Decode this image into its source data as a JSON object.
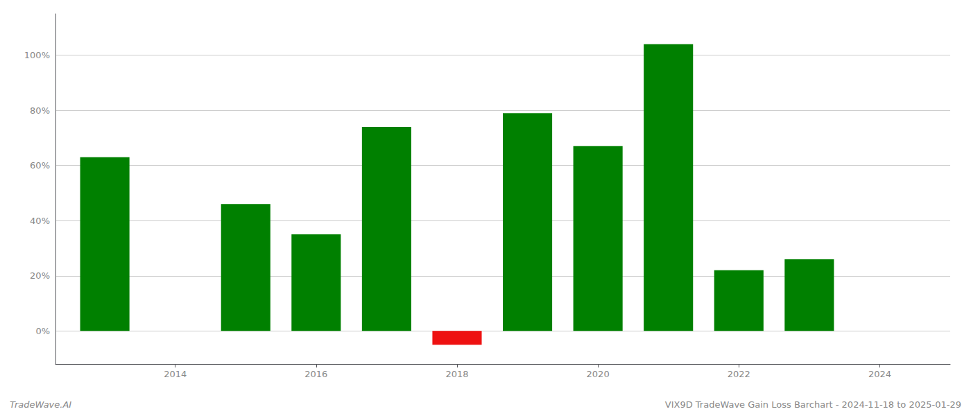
{
  "chart_data": {
    "type": "bar",
    "x": [
      2013,
      2015,
      2016,
      2017,
      2018,
      2019,
      2020,
      2021,
      2022,
      2023
    ],
    "values": [
      0.63,
      0.46,
      0.35,
      0.74,
      -0.05,
      0.79,
      0.67,
      1.04,
      0.22,
      0.26
    ],
    "colors": [
      "#008000",
      "#008000",
      "#008000",
      "#008000",
      "#ee1111",
      "#008000",
      "#008000",
      "#008000",
      "#008000",
      "#008000"
    ],
    "xlim": [
      2012.3,
      2025.0
    ],
    "xticks": [
      2014,
      2016,
      2018,
      2020,
      2022,
      2024
    ],
    "ylim": [
      -0.12,
      1.15
    ],
    "yticks": [
      {
        "value": 0.0,
        "label": "0%"
      },
      {
        "value": 0.2,
        "label": "20%"
      },
      {
        "value": 0.4,
        "label": "40%"
      },
      {
        "value": 0.6,
        "label": "60%"
      },
      {
        "value": 0.8,
        "label": "80%"
      },
      {
        "value": 1.0,
        "label": "100%"
      }
    ],
    "grid": true,
    "annotations": [
      "TradeWave.AI",
      "VIX9D TradeWave Gain Loss Barchart - 2024-11-18 to 2025-01-29"
    ]
  }
}
